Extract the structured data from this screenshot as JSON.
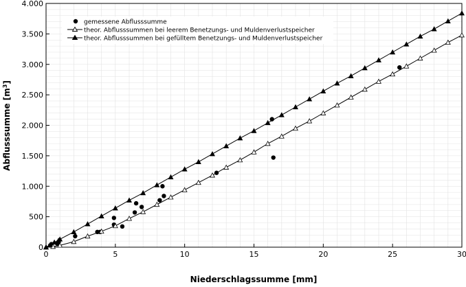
{
  "chart_data": {
    "type": "scatter",
    "xlabel": "Niederschlagssumme [mm]",
    "ylabel_base": "Abflusssumme [m",
    "ylabel_sup": "3",
    "ylabel_end": "]",
    "xlim": [
      0,
      30
    ],
    "ylim": [
      0,
      4000
    ],
    "x_ticks": [
      0,
      5,
      10,
      15,
      20,
      25,
      30
    ],
    "x_tick_labels": [
      "0",
      "5",
      "10",
      "15",
      "20",
      "25",
      "30"
    ],
    "y_ticks": [
      0,
      500,
      1000,
      1500,
      2000,
      2500,
      3000,
      3500,
      4000
    ],
    "y_tick_labels": [
      "0",
      "500",
      "1.000",
      "1.500",
      "2.000",
      "2.500",
      "3.000",
      "3.500",
      "4.000"
    ],
    "grid": true,
    "legend_position": "top-left",
    "series": [
      {
        "name": "gemessene Abflusssumme",
        "marker": "filled-circle",
        "line": false,
        "x": [
          0.3,
          0.4,
          0.8,
          0.9,
          2.1,
          3.7,
          3.9,
          4.9,
          4.9,
          5.5,
          6.4,
          6.5,
          6.9,
          8.2,
          8.4,
          8.5,
          12.3,
          16.3,
          16.4,
          25.5
        ],
        "y": [
          30,
          50,
          60,
          90,
          180,
          250,
          250,
          370,
          480,
          340,
          570,
          720,
          660,
          770,
          1000,
          840,
          1220,
          2100,
          1470,
          2950
        ]
      },
      {
        "name": "theor. Abflusssummen bei leerem  Benetzungs- und Muldenverlustspeicher",
        "marker": "open-triangle",
        "line": true,
        "x": [
          0,
          0.5,
          1,
          2,
          3,
          4,
          5,
          6,
          7,
          8,
          9,
          10,
          11,
          12,
          13,
          14,
          15,
          16,
          17,
          18,
          19,
          20,
          21,
          22,
          23,
          24,
          25,
          26,
          27,
          28,
          29,
          30
        ],
        "y": [
          0,
          10,
          30,
          90,
          180,
          260,
          350,
          470,
          580,
          700,
          820,
          940,
          1060,
          1180,
          1310,
          1430,
          1560,
          1700,
          1820,
          1950,
          2070,
          2200,
          2330,
          2460,
          2590,
          2720,
          2840,
          2970,
          3100,
          3230,
          3360,
          3480
        ]
      },
      {
        "name": "theor. Abflusssummen bei gefülltem  Benetzungs- und Muldenverlustspeicher",
        "marker": "filled-triangle",
        "line": true,
        "x": [
          0,
          0.3,
          0.6,
          0.9,
          1,
          2,
          3,
          4,
          5,
          6,
          7,
          8,
          9,
          10,
          11,
          12,
          13,
          14,
          15,
          16,
          17,
          18,
          19,
          20,
          21,
          22,
          23,
          24,
          25,
          26,
          27,
          28,
          29,
          30
        ],
        "y": [
          0,
          40,
          80,
          110,
          130,
          250,
          380,
          510,
          640,
          770,
          890,
          1020,
          1150,
          1280,
          1400,
          1530,
          1660,
          1790,
          1910,
          2040,
          2170,
          2300,
          2430,
          2560,
          2690,
          2810,
          2940,
          3070,
          3200,
          3330,
          3460,
          3580,
          3710,
          3840
        ]
      }
    ]
  }
}
